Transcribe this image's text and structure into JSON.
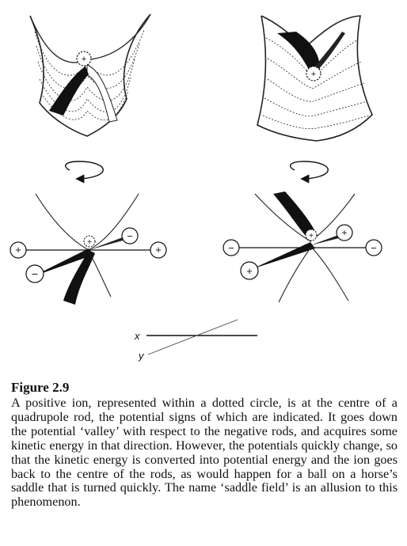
{
  "figure": {
    "charge_labels": {
      "plus": "+",
      "minus": "−"
    },
    "axis_labels": {
      "x": "x",
      "y": "y"
    }
  },
  "caption": {
    "title": "Figure 2.9",
    "text": "A positive ion, represented within a dotted circle, is at the centre of a quadrupole rod, the potential signs of which are indicated. It goes down the potential ‘valley’ with respect to the negative rods, and acquires some kinetic energy in that direction. However, the potentials quickly change, so that the kinetic energy is converted into potential energy and the ion goes back to the centre of the rods, as would happen for a ball on a horse’s saddle that is turned quickly. The name ‘saddle field’ is an allusion to this phenomenon."
  }
}
